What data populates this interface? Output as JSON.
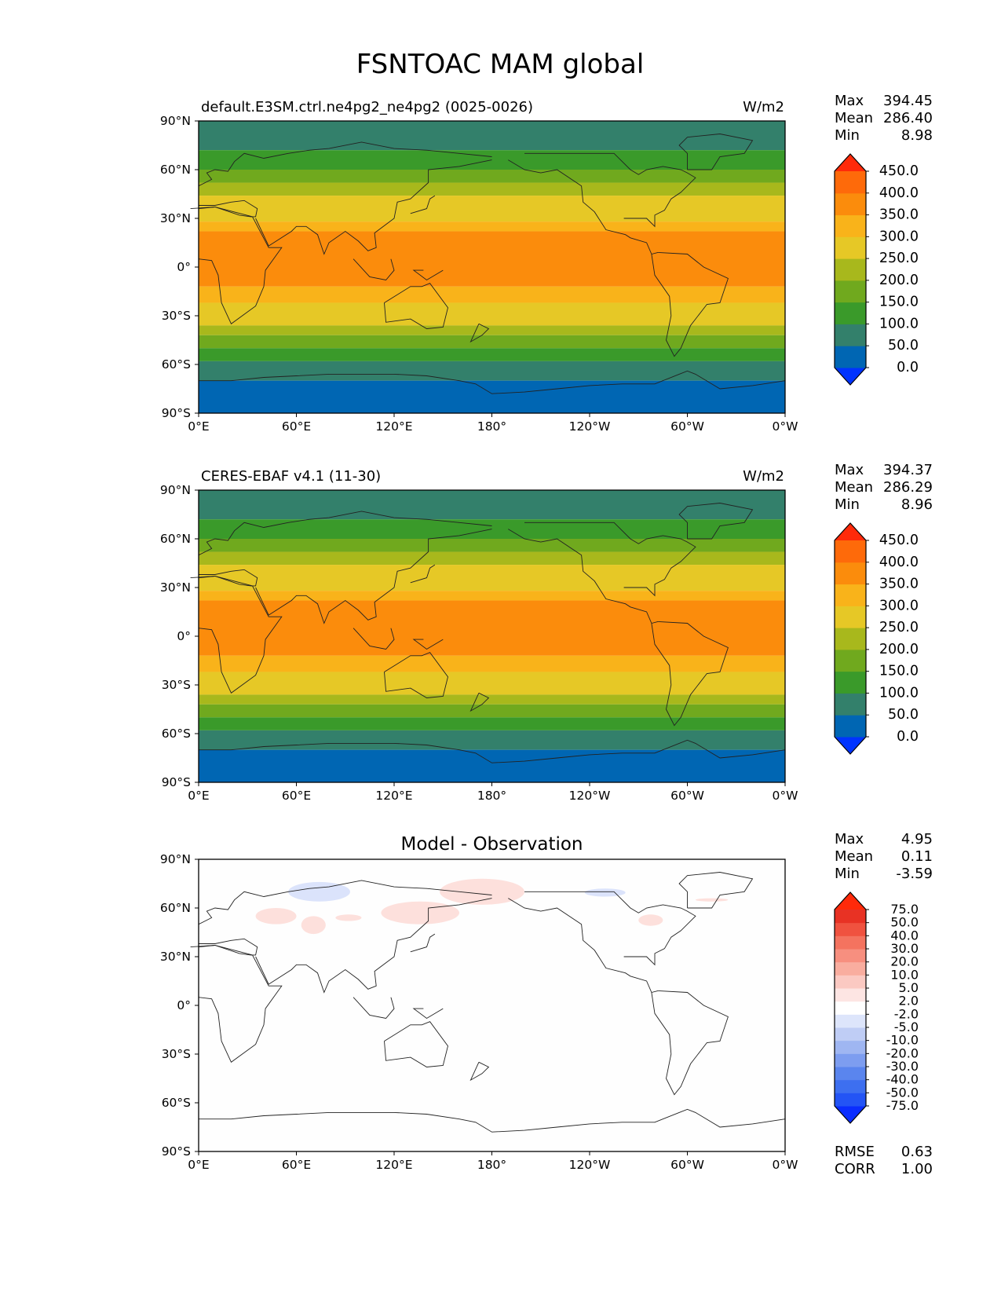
{
  "figure": {
    "title": "FSNTOAC MAM global"
  },
  "colors": {
    "abs_levels": [
      "#0033ff",
      "#0066b3",
      "#33806b",
      "#3a9a2a",
      "#70a91e",
      "#a8b81c",
      "#e6c826",
      "#f9b31a",
      "#fb8c0c",
      "#fe6a0a",
      "#ff2a0a"
    ],
    "diff_levels": [
      "#0a2dff",
      "#2354f5",
      "#3d6ff0",
      "#5a85ee",
      "#7d9df0",
      "#9fb6f2",
      "#bfcdf5",
      "#dde5fb",
      "#ffffff",
      "#fde5e3",
      "#fbc9c2",
      "#f9ad9f",
      "#f78f7f",
      "#f4735f",
      "#f0523f",
      "#e83224",
      "#ff2a0a"
    ],
    "diff_pos_patch": "#fde0dc",
    "diff_neg_patch": "#dbe3fb",
    "land_outline": "#222222"
  },
  "chart_data": [
    {
      "type": "heatmap",
      "panel": "test",
      "title": "default.E3SM.ctrl.ne4pg2_ne4pg2 (0025-0026)",
      "units": "W/m2",
      "stats": [
        {
          "label": "Max",
          "value": "394.45"
        },
        {
          "label": "Mean",
          "value": "286.40"
        },
        {
          "label": "Min",
          "value": "8.98"
        }
      ],
      "colorbar_levels": [
        "0.0",
        "50.0",
        "100.0",
        "150.0",
        "200.0",
        "250.0",
        "300.0",
        "350.0",
        "400.0",
        "450.0"
      ],
      "xticks": [
        "0°E",
        "60°E",
        "120°E",
        "180°",
        "120°W",
        "60°W",
        "0°W"
      ],
      "yticks": [
        "90°N",
        "60°N",
        "30°N",
        "0°",
        "30°S",
        "60°S",
        "90°S"
      ],
      "xlim": [
        0,
        360
      ],
      "ylim": [
        -90,
        90
      ],
      "zonal_profile": [
        {
          "lat_min": 72,
          "lat_max": 90,
          "value": 90
        },
        {
          "lat_min": 60,
          "lat_max": 72,
          "value": 130
        },
        {
          "lat_min": 52,
          "lat_max": 60,
          "value": 180
        },
        {
          "lat_min": 44,
          "lat_max": 52,
          "value": 230
        },
        {
          "lat_min": 28,
          "lat_max": 44,
          "value": 280
        },
        {
          "lat_min": 22,
          "lat_max": 28,
          "value": 330
        },
        {
          "lat_min": -12,
          "lat_max": 22,
          "value": 370
        },
        {
          "lat_min": -22,
          "lat_max": -12,
          "value": 330
        },
        {
          "lat_min": -36,
          "lat_max": -22,
          "value": 280
        },
        {
          "lat_min": -42,
          "lat_max": -36,
          "value": 230
        },
        {
          "lat_min": -50,
          "lat_max": -42,
          "value": 180
        },
        {
          "lat_min": -58,
          "lat_max": -50,
          "value": 130
        },
        {
          "lat_min": -70,
          "lat_max": -58,
          "value": 90
        },
        {
          "lat_min": -90,
          "lat_max": -70,
          "value": 30
        }
      ]
    },
    {
      "type": "heatmap",
      "panel": "reference",
      "title": "CERES-EBAF v4.1 (11-30)",
      "units": "W/m2",
      "stats": [
        {
          "label": "Max",
          "value": "394.37"
        },
        {
          "label": "Mean",
          "value": "286.29"
        },
        {
          "label": "Min",
          "value": "8.96"
        }
      ],
      "colorbar_levels": [
        "0.0",
        "50.0",
        "100.0",
        "150.0",
        "200.0",
        "250.0",
        "300.0",
        "350.0",
        "400.0",
        "450.0"
      ],
      "xticks": [
        "0°E",
        "60°E",
        "120°E",
        "180°",
        "120°W",
        "60°W",
        "0°W"
      ],
      "yticks": [
        "90°N",
        "60°N",
        "30°N",
        "0°",
        "30°S",
        "60°S",
        "90°S"
      ],
      "xlim": [
        0,
        360
      ],
      "ylim": [
        -90,
        90
      ],
      "zonal_profile": [
        {
          "lat_min": 72,
          "lat_max": 90,
          "value": 90
        },
        {
          "lat_min": 60,
          "lat_max": 72,
          "value": 130
        },
        {
          "lat_min": 52,
          "lat_max": 60,
          "value": 180
        },
        {
          "lat_min": 44,
          "lat_max": 52,
          "value": 230
        },
        {
          "lat_min": 28,
          "lat_max": 44,
          "value": 280
        },
        {
          "lat_min": 22,
          "lat_max": 28,
          "value": 330
        },
        {
          "lat_min": -12,
          "lat_max": 22,
          "value": 370
        },
        {
          "lat_min": -22,
          "lat_max": -12,
          "value": 330
        },
        {
          "lat_min": -36,
          "lat_max": -22,
          "value": 280
        },
        {
          "lat_min": -42,
          "lat_max": -36,
          "value": 230
        },
        {
          "lat_min": -50,
          "lat_max": -42,
          "value": 180
        },
        {
          "lat_min": -58,
          "lat_max": -50,
          "value": 130
        },
        {
          "lat_min": -70,
          "lat_max": -58,
          "value": 90
        },
        {
          "lat_min": -90,
          "lat_max": -70,
          "value": 30
        }
      ]
    },
    {
      "type": "heatmap",
      "panel": "difference",
      "title": "Model - Observation",
      "units": "",
      "stats": [
        {
          "label": "Max",
          "value": "4.95"
        },
        {
          "label": "Mean",
          "value": "0.11"
        },
        {
          "label": "Min",
          "value": "-3.59"
        }
      ],
      "colorbar_levels": [
        "-75.0",
        "-50.0",
        "-40.0",
        "-30.0",
        "-20.0",
        "-10.0",
        "-5.0",
        "-2.0",
        "2.0",
        "5.0",
        "10.0",
        "20.0",
        "30.0",
        "40.0",
        "50.0",
        "75.0"
      ],
      "xticks": [
        "0°E",
        "60°E",
        "120°E",
        "180°",
        "120°W",
        "60°W",
        "0°W"
      ],
      "yticks": [
        "90°N",
        "60°N",
        "30°N",
        "0°",
        "30°S",
        "60°S",
        "90°S"
      ],
      "xlim": [
        0,
        360
      ],
      "ylim": [
        -90,
        90
      ],
      "anomaly_regions": [
        {
          "sign": "positive",
          "lon_min": 35,
          "lon_max": 60,
          "lat_min": 50,
          "lat_max": 60
        },
        {
          "sign": "positive",
          "lon_min": 63,
          "lon_max": 78,
          "lat_min": 44,
          "lat_max": 55
        },
        {
          "sign": "positive",
          "lon_min": 84,
          "lon_max": 100,
          "lat_min": 52,
          "lat_max": 56
        },
        {
          "sign": "positive",
          "lon_min": 112,
          "lon_max": 160,
          "lat_min": 50,
          "lat_max": 64
        },
        {
          "sign": "positive",
          "lon_min": 148,
          "lon_max": 200,
          "lat_min": 62,
          "lat_max": 78
        },
        {
          "sign": "positive",
          "lon_min": 270,
          "lon_max": 285,
          "lat_min": 49,
          "lat_max": 56
        },
        {
          "sign": "positive",
          "lon_min": 305,
          "lon_max": 325,
          "lat_min": 64,
          "lat_max": 66
        },
        {
          "sign": "negative",
          "lon_min": 55,
          "lon_max": 93,
          "lat_min": 64,
          "lat_max": 76
        },
        {
          "sign": "negative",
          "lon_min": 237,
          "lon_max": 262,
          "lat_min": 67,
          "lat_max": 72
        }
      ],
      "metrics": [
        {
          "label": "RMSE",
          "value": "0.63"
        },
        {
          "label": "CORR",
          "value": "1.00"
        }
      ]
    }
  ]
}
